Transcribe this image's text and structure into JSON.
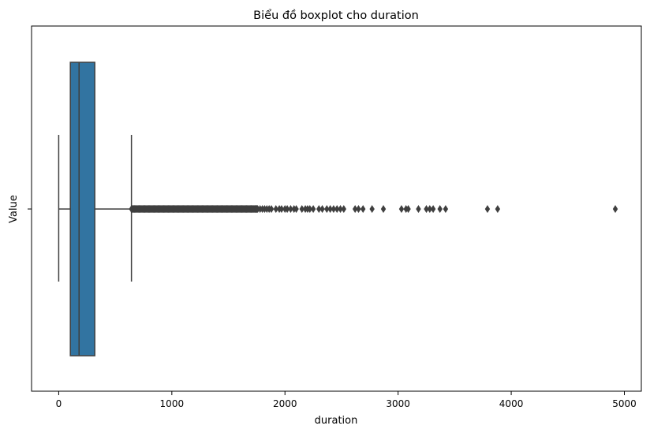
{
  "chart_data": {
    "type": "boxplot",
    "title": "Biểu đồ boxplot cho duration",
    "xlabel": "duration",
    "ylabel": "Value",
    "xlim": [
      -240,
      5150
    ],
    "x_ticks": [
      0,
      1000,
      2000,
      3000,
      4000,
      5000
    ],
    "x_tick_labels": [
      "0",
      "1000",
      "2000",
      "3000",
      "4000",
      "5000"
    ],
    "y_tick_labels": [
      ""
    ],
    "grid": false,
    "box": {
      "whisker_low": 0,
      "q1": 103,
      "median": 180,
      "q3": 319,
      "whisker_high": 643,
      "outlier_range_dense": [
        643,
        1760
      ],
      "outliers": [
        1780,
        1800,
        1820,
        1840,
        1860,
        1880,
        1920,
        1950,
        1970,
        2000,
        2020,
        2050,
        2080,
        2100,
        2150,
        2180,
        2200,
        2220,
        2250,
        2300,
        2330,
        2370,
        2400,
        2430,
        2460,
        2490,
        2520,
        2620,
        2650,
        2690,
        2770,
        2870,
        3030,
        3070,
        3090,
        3180,
        3250,
        3280,
        3310,
        3370,
        3420,
        3790,
        3880,
        4920
      ]
    },
    "colors": {
      "box_fill": "#3274a1",
      "line": "#3f3f3f",
      "outlier": "#3f3f3f"
    }
  }
}
